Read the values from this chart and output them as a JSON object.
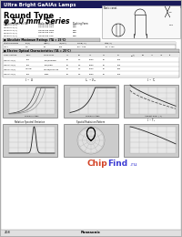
{
  "title_bar": "Ultra Bright GaAlAs Lamps",
  "title_bar_bg": "#1a1a5a",
  "title_bar_color": "#ffffff",
  "heading1": "Round Type",
  "heading2": "φ 5.0 mm  Series",
  "page_bg": "#b0b0b0",
  "content_bg": "#ffffff",
  "graph_bg": "#d0d0d0",
  "table_header_bg": "#cccccc",
  "chipfind_chip": "#cc2200",
  "chipfind_find": "#1a1acc",
  "panasonic_text": "Panasonic",
  "page_number": "208",
  "part_rows": [
    [
      "LN21CALU(Y)",
      "LN20CG5 Riba",
      "Reel"
    ],
    [
      "LN21CALU(Y)",
      "LN20CG5 Gba",
      "Reel"
    ],
    [
      "LN21CALU(Y)",
      "LN20CG5 Wba",
      "Reel"
    ],
    [
      "LN21CALU(Y)",
      "LN20CG5 Rba",
      "Reel"
    ],
    [
      "LN21CALU(Y)",
      "LN20CG5 Yba",
      "Reel"
    ]
  ],
  "col_headers": [
    "Conventional Part No.",
    "Order Part No.",
    "Packing Form"
  ],
  "abs_max_headers": [
    "Starting Diode",
    "VF(V)",
    "IF(mA)",
    "IFP(mA)",
    "Tamb(°C)",
    "Tstg(°C)"
  ],
  "abs_max_vals": [
    "LN21",
    "2.5",
    "30",
    "100",
    "-30~+85",
    "-40~+100"
  ],
  "eo_rows": [
    [
      "LN21CALU(Y)",
      "Red",
      "Red/Diffused",
      "20",
      "2.2",
      "2500",
      "30",
      "660"
    ],
    [
      "LN21CALU(Y)",
      "Red",
      "Red/Clear",
      "20",
      "2.2",
      "5000",
      "15",
      "660"
    ],
    [
      "LN21CALU(Y)",
      "Yellow",
      "Yellow/Diffused",
      "20",
      "2.2",
      "2500",
      "30",
      "583"
    ],
    [
      "LN21CALU(Y)",
      "Red",
      "Ruby",
      "20",
      "2.2",
      "1000",
      "15",
      "660"
    ]
  ]
}
